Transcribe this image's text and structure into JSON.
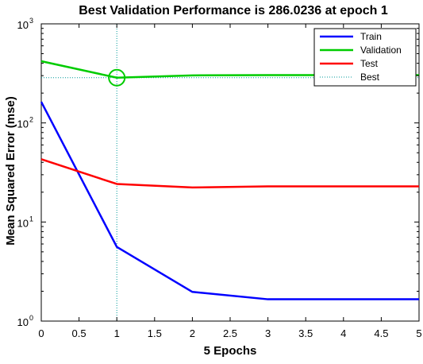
{
  "chart_data": {
    "type": "line",
    "title": "Best Validation Performance is 286.0236 at epoch 1",
    "xlabel": "5 Epochs",
    "ylabel": "Mean Squared Error  (mse)",
    "xlim": [
      0,
      5
    ],
    "ylim": [
      1,
      1000
    ],
    "yscale": "log",
    "x_ticks": [
      "0",
      "0.5",
      "1",
      "1.5",
      "2",
      "2.5",
      "3",
      "3.5",
      "4",
      "4.5",
      "5"
    ],
    "y_ticks": [
      {
        "base": "10",
        "exp": "0"
      },
      {
        "base": "10",
        "exp": "1"
      },
      {
        "base": "10",
        "exp": "2"
      },
      {
        "base": "10",
        "exp": "3"
      }
    ],
    "x": [
      0,
      1,
      2,
      3,
      4,
      5
    ],
    "series": [
      {
        "name": "Train",
        "color": "#0000ff",
        "values": [
          163,
          5.6,
          1.97,
          1.66,
          1.66,
          1.66
        ]
      },
      {
        "name": "Validation",
        "color": "#00cc00",
        "values": [
          420,
          286.0236,
          302,
          304,
          304,
          304
        ]
      },
      {
        "name": "Test",
        "color": "#ff0000",
        "values": [
          43,
          24.2,
          22.3,
          22.9,
          22.9,
          22.9
        ]
      }
    ],
    "best": {
      "name": "Best",
      "epoch": 1,
      "value": 286.0236,
      "color": "#009999"
    },
    "grid": false,
    "legend_position": "top-right"
  }
}
